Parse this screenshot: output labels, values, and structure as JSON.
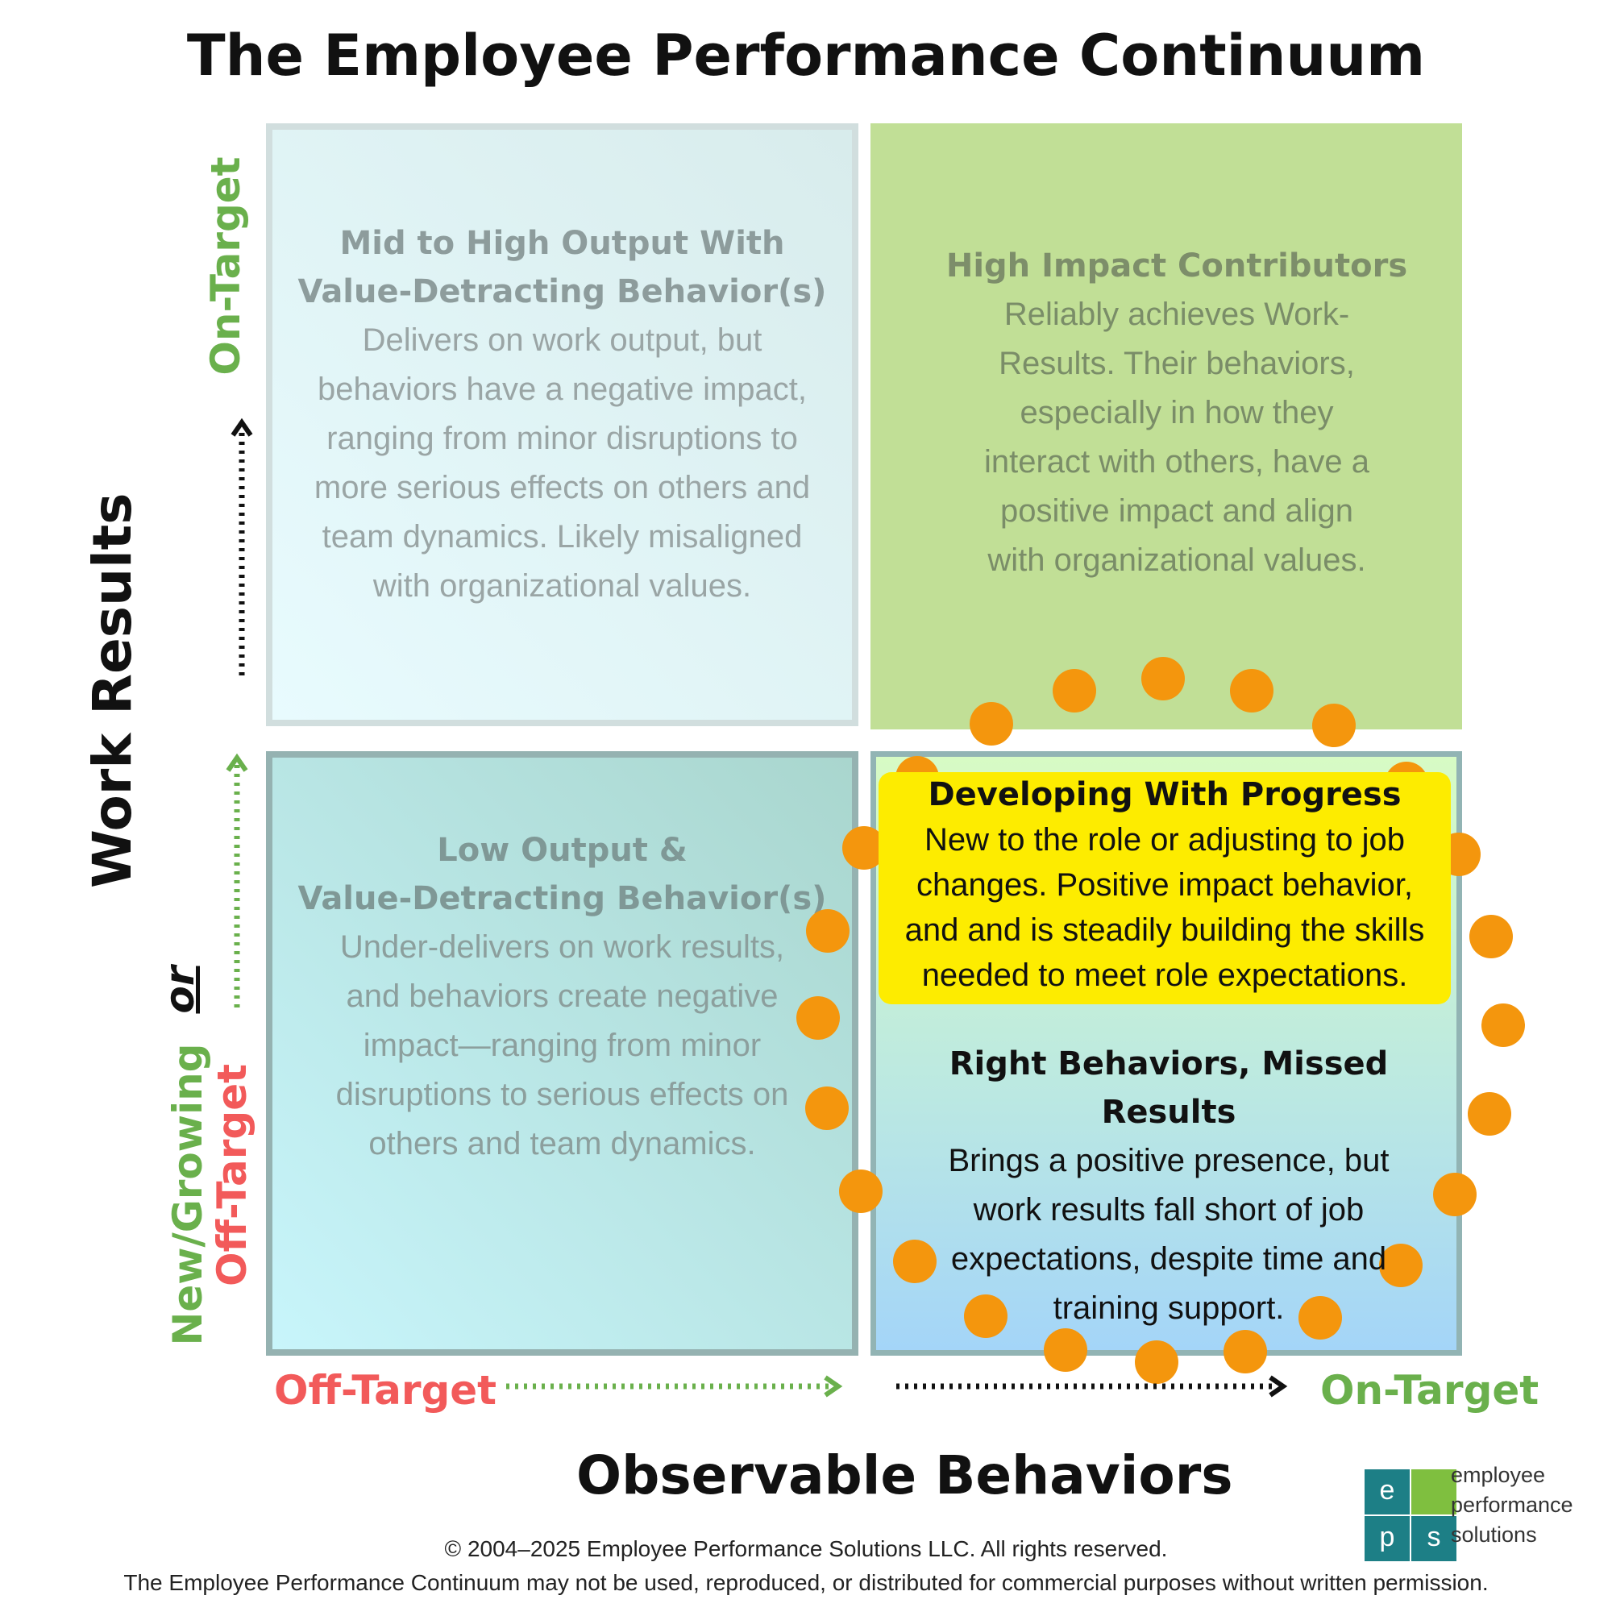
{
  "title": "The Employee Performance Continuum",
  "axes": {
    "y_label": "Work Results",
    "y_on_target": "On-Target",
    "y_new_growing": "New/Growing",
    "y_or": "or",
    "y_off_target": "Off-Target",
    "x_label": "Observable Behaviors",
    "x_off_target": "Off-Target",
    "x_on_target": "On-Target"
  },
  "quadrants": {
    "top_left": {
      "heading_1": "Mid to High Output With",
      "heading_2": "Value-Detracting Behavior(s)",
      "body": [
        "Delivers on work output, but",
        "behaviors have a negative impact,",
        "ranging from minor disruptions to",
        "more serious effects on others and",
        "team dynamics. Likely misaligned",
        "with organizational values."
      ]
    },
    "top_right": {
      "heading": "High Impact Contributors",
      "body": [
        "Reliably achieves Work-",
        "Results.  Their behaviors,",
        "especially in how they",
        "interact with others, have a",
        "positive impact and align",
        "with organizational values."
      ]
    },
    "bottom_left": {
      "heading_1": "Low Output &",
      "heading_2": "Value-Detracting  Behavior(s)",
      "body": [
        "Under-delivers on work results,",
        "and behaviors create negative",
        "impact—ranging from minor",
        "disruptions to serious effects on",
        "others and team dynamics."
      ]
    },
    "bottom_right": {
      "developing_heading": "Developing With Progress",
      "developing_body": [
        "New to the role or adjusting to job",
        "changes. Positive impact behavior,",
        "and and is steadily building the skills",
        "needed to meet role expectations."
      ],
      "missed_heading_1": "Right Behaviors, Missed",
      "missed_heading_2": "Results",
      "missed_body": [
        "Brings a positive presence, but",
        "work results fall short of job",
        "expectations, despite time and",
        "training support."
      ]
    }
  },
  "colors": {
    "green": "#6ab04c",
    "red": "#f25a5a",
    "orange_dot": "#f4960d",
    "yellow_highlight": "#fdec00",
    "logo_teal": "#1d7f86",
    "logo_green": "#7fbf3f"
  },
  "logo": {
    "letters": [
      "e",
      "p",
      "s"
    ],
    "text": [
      "employee",
      "performance",
      "solutions"
    ]
  },
  "footer": {
    "copyright": "© 2004–2025 Employee Performance Solutions LLC. All rights reserved.",
    "notice": "The Employee Performance Continuum may not be used, reproduced, or distributed for commercial purposes without written permission."
  }
}
